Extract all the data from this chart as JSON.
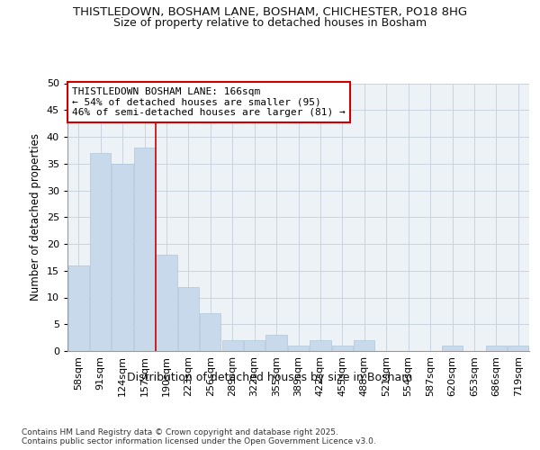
{
  "title1": "THISTLEDOWN, BOSHAM LANE, BOSHAM, CHICHESTER, PO18 8HG",
  "title2": "Size of property relative to detached houses in Bosham",
  "xlabel": "Distribution of detached houses by size in Bosham",
  "ylabel": "Number of detached properties",
  "footnote1": "Contains HM Land Registry data © Crown copyright and database right 2025.",
  "footnote2": "Contains public sector information licensed under the Open Government Licence v3.0.",
  "categories": [
    "58sqm",
    "91sqm",
    "124sqm",
    "157sqm",
    "190sqm",
    "223sqm",
    "256sqm",
    "289sqm",
    "322sqm",
    "355sqm",
    "389sqm",
    "422sqm",
    "455sqm",
    "488sqm",
    "521sqm",
    "554sqm",
    "587sqm",
    "620sqm",
    "653sqm",
    "686sqm",
    "719sqm"
  ],
  "values": [
    16,
    37,
    35,
    38,
    18,
    12,
    7,
    2,
    2,
    3,
    1,
    2,
    1,
    2,
    0,
    0,
    0,
    1,
    0,
    1,
    1
  ],
  "bar_color": "#c9d9ec",
  "bar_edge_color": "#aec6d8",
  "grid_color": "#c8d4de",
  "annotation_text1": "THISTLEDOWN BOSHAM LANE: 166sqm",
  "annotation_text2": "← 54% of detached houses are smaller (95)",
  "annotation_text3": "46% of semi-detached houses are larger (81) →",
  "annotation_box_color": "#ffffff",
  "annotation_border_color": "#cc0000",
  "vline_color": "#cc0000",
  "ylim": [
    0,
    50
  ],
  "yticks": [
    0,
    5,
    10,
    15,
    20,
    25,
    30,
    35,
    40,
    45,
    50
  ],
  "background_color": "#edf2f7",
  "fig_background": "#ffffff",
  "title_fontsize": 9.5,
  "subtitle_fontsize": 9.0,
  "ylabel_fontsize": 8.5,
  "xlabel_fontsize": 9.0,
  "tick_fontsize": 8.0,
  "annot_fontsize": 8.0,
  "footnote_fontsize": 6.5
}
